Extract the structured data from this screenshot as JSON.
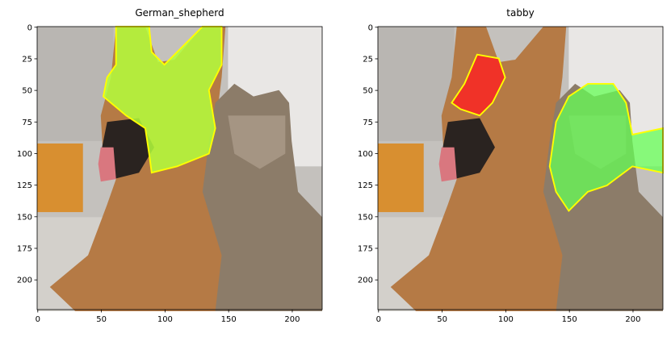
{
  "chart_data": [
    {
      "type": "image",
      "title": "German_shepherd",
      "xlim": [
        -0.5,
        223.5
      ],
      "ylim": [
        223.5,
        -0.5
      ],
      "xticks": [
        0,
        50,
        100,
        150,
        200
      ],
      "yticks": [
        0,
        25,
        50,
        75,
        100,
        125,
        150,
        175,
        200
      ]
    },
    {
      "type": "image",
      "title": "tabby",
      "xlim": [
        -0.5,
        223.5
      ],
      "ylim": [
        223.5,
        -0.5
      ],
      "xticks": [
        0,
        50,
        100,
        150,
        200
      ],
      "yticks": [
        0,
        25,
        50,
        75,
        100,
        125,
        150,
        175,
        200
      ]
    }
  ]
}
